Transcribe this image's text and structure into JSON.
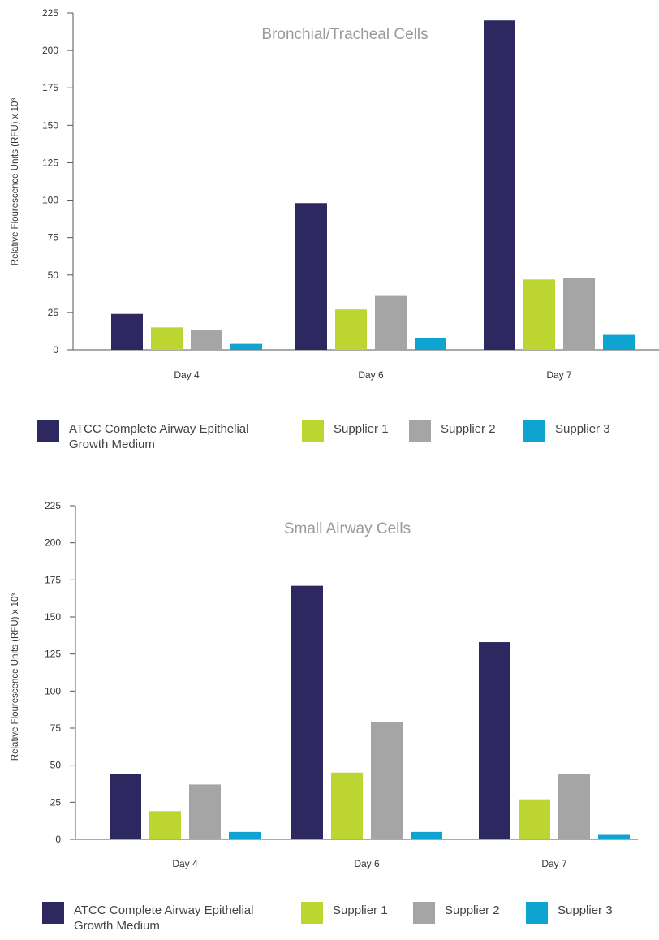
{
  "chart_data": [
    {
      "type": "bar",
      "title": "Bronchial/Tracheal Cells",
      "ylabel": "Relative Flourescence  Units (RFU) x 10³",
      "xlabel": "",
      "ylim": [
        0,
        225
      ],
      "yticks": [
        "0",
        "25",
        "50",
        "75",
        "100",
        "125",
        "150",
        "175",
        "200",
        "225"
      ],
      "categories": [
        "Day 4",
        "Day 6",
        "Day 7"
      ],
      "series": [
        {
          "name": "ATCC Complete Airway Epithelial Growth Medium",
          "color": "#2e2860",
          "values": [
            24,
            98,
            220
          ]
        },
        {
          "name": "Supplier 1",
          "color": "#bcd531",
          "values": [
            15,
            27,
            47
          ]
        },
        {
          "name": "Supplier 2",
          "color": "#a5a5a5",
          "values": [
            13,
            36,
            48
          ]
        },
        {
          "name": "Supplier 3",
          "color": "#0fa3d1",
          "values": [
            4,
            8,
            10
          ]
        }
      ],
      "grid": false,
      "legend": "bottom"
    },
    {
      "type": "bar",
      "title": "Small Airway Cells",
      "ylabel": "Relative Flourescence  Units (RFU) x 10³",
      "xlabel": "",
      "ylim": [
        0,
        225
      ],
      "yticks": [
        "0",
        "25",
        "50",
        "75",
        "100",
        "125",
        "150",
        "175",
        "200",
        "225"
      ],
      "categories": [
        "Day 4",
        "Day 6",
        "Day 7"
      ],
      "series": [
        {
          "name": "ATCC Complete Airway Epithelial Growth Medium",
          "color": "#2e2860",
          "values": [
            44,
            171,
            133
          ]
        },
        {
          "name": "Supplier 1",
          "color": "#bcd531",
          "values": [
            19,
            45,
            27
          ]
        },
        {
          "name": "Supplier 2",
          "color": "#a5a5a5",
          "values": [
            37,
            79,
            44
          ]
        },
        {
          "name": "Supplier 3",
          "color": "#0fa3d1",
          "values": [
            5,
            5,
            3
          ]
        }
      ],
      "grid": false,
      "legend": "bottom"
    }
  ],
  "legend": {
    "labels": [
      [
        "ATCC Complete Airway Epithelial",
        "Growth Medium"
      ],
      [
        "Supplier 1"
      ],
      [
        "Supplier 2"
      ],
      [
        "Supplier 3"
      ]
    ]
  }
}
